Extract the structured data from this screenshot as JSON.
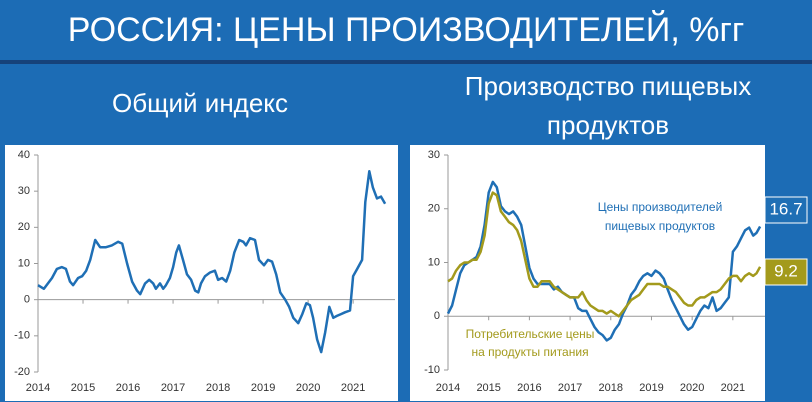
{
  "header": {
    "title": "РОССИЯ: ЦЕНЫ ПРОИЗВОДИТЕЛЕЙ, %гг"
  },
  "chart_data": [
    {
      "type": "line",
      "title": [
        "Общий индекс"
      ],
      "xlim": [
        2014,
        2021.93
      ],
      "xticks": [
        2014,
        2015,
        2016,
        2017,
        2018,
        2019,
        2020,
        2021
      ],
      "ylim": [
        -20,
        40
      ],
      "yticks": [
        -20,
        -10,
        0,
        10,
        20,
        30,
        40
      ],
      "grid": false,
      "x": [
        2014.0,
        2014.13,
        2014.31,
        2014.42,
        2014.53,
        2014.62,
        2014.71,
        2014.78,
        2014.89,
        2014.98,
        2015.07,
        2015.16,
        2015.27,
        2015.38,
        2015.51,
        2015.64,
        2015.78,
        2015.87,
        2015.98,
        2016.09,
        2016.2,
        2016.27,
        2016.38,
        2016.47,
        2016.56,
        2016.62,
        2016.71,
        2016.78,
        2016.84,
        2016.93,
        2017.0,
        2017.07,
        2017.13,
        2017.22,
        2017.31,
        2017.4,
        2017.49,
        2017.56,
        2017.62,
        2017.71,
        2017.82,
        2017.93,
        2018.0,
        2018.09,
        2018.18,
        2018.27,
        2018.36,
        2018.47,
        2018.56,
        2018.62,
        2018.71,
        2018.82,
        2018.91,
        2019.02,
        2019.11,
        2019.2,
        2019.29,
        2019.38,
        2019.49,
        2019.58,
        2019.67,
        2019.78,
        2019.87,
        2019.96,
        2020.04,
        2020.11,
        2020.2,
        2020.29,
        2020.38,
        2020.47,
        2020.56,
        2020.64,
        2020.73,
        2020.82,
        2020.93,
        2021.0,
        2021.09,
        2021.2,
        2021.27,
        2021.36,
        2021.44,
        2021.53,
        2021.62,
        2021.71
      ],
      "series": [
        {
          "color": "#1f6fb5",
          "values": [
            4,
            3,
            6,
            8.5,
            9,
            8.5,
            5,
            4,
            6,
            6.5,
            8,
            11,
            16.5,
            14.5,
            14.5,
            15,
            16,
            15.5,
            10,
            5,
            2.5,
            1.5,
            4.5,
            5.5,
            4.5,
            3,
            4.5,
            3,
            4,
            6,
            9,
            13,
            15,
            11,
            7,
            5.5,
            2.5,
            2,
            4.5,
            6.5,
            7.5,
            8,
            5.5,
            6,
            5,
            8,
            13,
            16.5,
            16,
            15,
            17,
            16.5,
            11,
            9.5,
            11,
            10.5,
            7,
            2,
            0,
            -2,
            -5,
            -6.5,
            -4,
            -1,
            -1.5,
            -5,
            -11,
            -14.5,
            -9,
            -2,
            -5,
            -4.5,
            -4,
            -3.5,
            -3,
            6.5,
            8.5,
            11,
            27,
            35.5,
            31,
            28,
            28.5,
            26.5
          ]
        }
      ]
    },
    {
      "type": "line",
      "title": [
        "Производство пищевых",
        "продуктов"
      ],
      "xlim": [
        2014,
        2021.79
      ],
      "xticks": [
        2014,
        2015,
        2016,
        2017,
        2018,
        2019,
        2020,
        2021
      ],
      "ylim": [
        -10,
        30
      ],
      "yticks": [
        -10,
        0,
        10,
        20,
        30
      ],
      "grid": false,
      "last_value_boxes": true,
      "x": [
        2014.0,
        2014.1,
        2014.2,
        2014.3,
        2014.4,
        2014.5,
        2014.6,
        2014.7,
        2014.8,
        2014.9,
        2015.0,
        2015.1,
        2015.2,
        2015.3,
        2015.4,
        2015.5,
        2015.6,
        2015.7,
        2015.8,
        2015.9,
        2016.0,
        2016.1,
        2016.2,
        2016.3,
        2016.4,
        2016.5,
        2016.6,
        2016.7,
        2016.8,
        2016.9,
        2017.0,
        2017.1,
        2017.2,
        2017.3,
        2017.4,
        2017.5,
        2017.6,
        2017.7,
        2017.8,
        2017.9,
        2018.0,
        2018.1,
        2018.2,
        2018.3,
        2018.4,
        2018.5,
        2018.6,
        2018.7,
        2018.8,
        2018.9,
        2019.0,
        2019.1,
        2019.2,
        2019.3,
        2019.4,
        2019.5,
        2019.6,
        2019.7,
        2019.8,
        2019.9,
        2020.0,
        2020.1,
        2020.2,
        2020.3,
        2020.4,
        2020.5,
        2020.6,
        2020.7,
        2020.8,
        2020.9,
        2021.0,
        2021.1,
        2021.2,
        2021.3,
        2021.4,
        2021.5,
        2021.58,
        2021.67
      ],
      "series": [
        {
          "color": "#1f6fb5",
          "values": [
            0.5,
            2,
            5,
            8,
            9.5,
            10,
            10.5,
            11,
            13,
            17,
            23,
            25,
            24,
            20.5,
            19.5,
            19,
            19.5,
            18.5,
            17,
            13,
            9,
            7,
            6,
            6,
            6,
            6,
            5,
            5.5,
            4.5,
            4,
            3.5,
            3.5,
            1.5,
            1,
            1,
            -0.5,
            -2,
            -3,
            -3.5,
            -4.5,
            -4,
            -2.5,
            -1.5,
            0.5,
            2,
            4,
            5,
            6.5,
            7.5,
            8,
            7.5,
            8.5,
            8,
            7,
            5,
            3,
            1.5,
            0,
            -1.5,
            -2.5,
            -2,
            -0.5,
            1,
            2,
            1.5,
            3.5,
            1,
            1.5,
            2.5,
            3.5,
            12,
            13,
            14.5,
            16,
            16.5,
            15,
            15.5,
            16.7
          ]
        },
        {
          "color": "#a39a1c",
          "values": [
            6.5,
            7,
            8.5,
            9.5,
            10,
            10,
            10.5,
            10.5,
            12,
            15,
            21,
            23,
            22.5,
            19.5,
            18.5,
            17.5,
            17,
            16,
            14,
            10.5,
            7,
            5.5,
            5.5,
            6.5,
            6.5,
            6.5,
            5.5,
            5,
            4.5,
            4,
            3.5,
            3.5,
            3.5,
            4.5,
            3,
            2,
            1.5,
            1,
            1,
            0.5,
            1,
            0.5,
            0,
            1,
            2,
            3,
            3.5,
            4,
            5,
            6,
            6,
            6,
            6,
            5.5,
            5.5,
            5,
            4.5,
            3.5,
            2.5,
            2,
            2,
            3,
            3.5,
            3.5,
            4,
            4.5,
            4.5,
            5,
            6,
            7,
            7.5,
            7.5,
            6.5,
            7.5,
            8,
            7.5,
            8,
            9.2
          ]
        }
      ],
      "annotations": [
        [
          "Цены производителей",
          "пищевых продуктов"
        ],
        [
          "Потребительские цены",
          "на продукты питания"
        ]
      ]
    }
  ]
}
